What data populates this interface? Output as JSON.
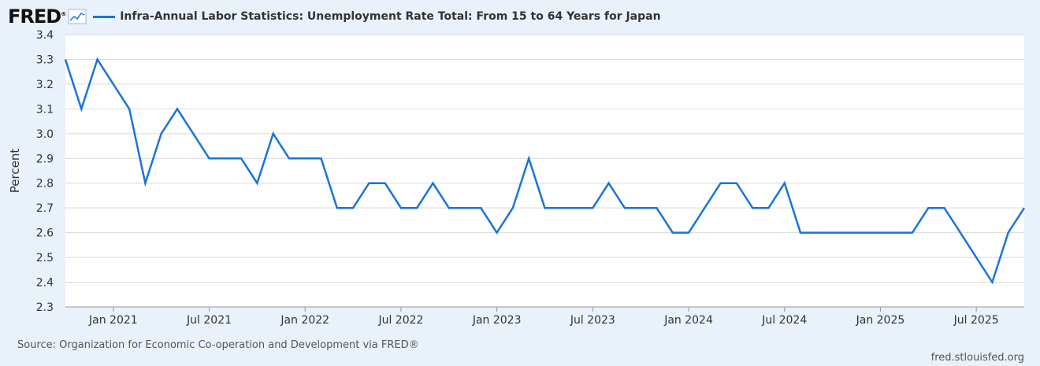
{
  "header": {
    "logo": "FRED",
    "logo_mark": "®",
    "title": "Infra-Annual Labor Statistics: Unemployment Rate Total: From 15 to 64 Years for Japan"
  },
  "colors": {
    "line": "#1a74d8",
    "background": "#e9f1fa",
    "grid": "#d9d9d9"
  },
  "footer": {
    "source": "Source: Organization for Economic Co-operation and Development via FRED®",
    "credit": "fred.stlouisfed.org"
  },
  "chart_data": {
    "type": "line",
    "ylabel": "Percent",
    "ylim": [
      2.3,
      3.4
    ],
    "yticks": [
      "2.3",
      "2.4",
      "2.5",
      "2.6",
      "2.7",
      "2.8",
      "2.9",
      "3.0",
      "3.1",
      "3.2",
      "3.3",
      "3.4"
    ],
    "xlim": [
      "2020-10",
      "2025-10"
    ],
    "xticks": [
      {
        "date": "2021-01",
        "label": "Jan 2021"
      },
      {
        "date": "2021-07",
        "label": "Jul 2021"
      },
      {
        "date": "2022-01",
        "label": "Jan 2022"
      },
      {
        "date": "2022-07",
        "label": "Jul 2022"
      },
      {
        "date": "2023-01",
        "label": "Jan 2023"
      },
      {
        "date": "2023-07",
        "label": "Jul 2023"
      },
      {
        "date": "2024-01",
        "label": "Jan 2024"
      },
      {
        "date": "2024-07",
        "label": "Jul 2024"
      },
      {
        "date": "2025-01",
        "label": "Jan 2025"
      },
      {
        "date": "2025-07",
        "label": "Jul 2025"
      }
    ],
    "grid": true,
    "series": [
      {
        "name": "Infra-Annual Labor Statistics: Unemployment Rate Total: From 15 to 64 Years for Japan",
        "x": [
          "2020-10",
          "2020-11",
          "2020-12",
          "2021-01",
          "2021-02",
          "2021-03",
          "2021-04",
          "2021-05",
          "2021-06",
          "2021-07",
          "2021-08",
          "2021-09",
          "2021-10",
          "2021-11",
          "2021-12",
          "2022-01",
          "2022-02",
          "2022-03",
          "2022-04",
          "2022-05",
          "2022-06",
          "2022-07",
          "2022-08",
          "2022-09",
          "2022-10",
          "2022-11",
          "2022-12",
          "2023-01",
          "2023-02",
          "2023-03",
          "2023-04",
          "2023-05",
          "2023-06",
          "2023-07",
          "2023-08",
          "2023-09",
          "2023-10",
          "2023-11",
          "2023-12",
          "2024-01",
          "2024-02",
          "2024-03",
          "2024-04",
          "2024-05",
          "2024-06",
          "2024-07",
          "2024-08",
          "2024-09",
          "2024-10",
          "2024-11",
          "2024-12",
          "2025-01",
          "2025-02",
          "2025-03",
          "2025-04",
          "2025-05",
          "2025-06",
          "2025-07",
          "2025-08",
          "2025-09",
          "2025-10"
        ],
        "values": [
          3.3,
          3.1,
          3.3,
          3.2,
          3.1,
          2.8,
          3.0,
          3.1,
          3.0,
          2.9,
          2.9,
          2.9,
          2.8,
          3.0,
          2.9,
          2.9,
          2.9,
          2.7,
          2.7,
          2.8,
          2.8,
          2.7,
          2.7,
          2.8,
          2.7,
          2.7,
          2.7,
          2.6,
          2.7,
          2.9,
          2.7,
          2.7,
          2.7,
          2.7,
          2.8,
          2.7,
          2.7,
          2.7,
          2.6,
          2.6,
          2.7,
          2.8,
          2.8,
          2.7,
          2.7,
          2.8,
          2.6,
          2.6,
          2.6,
          2.6,
          2.6,
          2.6,
          2.6,
          2.6,
          2.7,
          2.7,
          2.6,
          2.5,
          2.4,
          2.6,
          2.7
        ]
      }
    ]
  }
}
